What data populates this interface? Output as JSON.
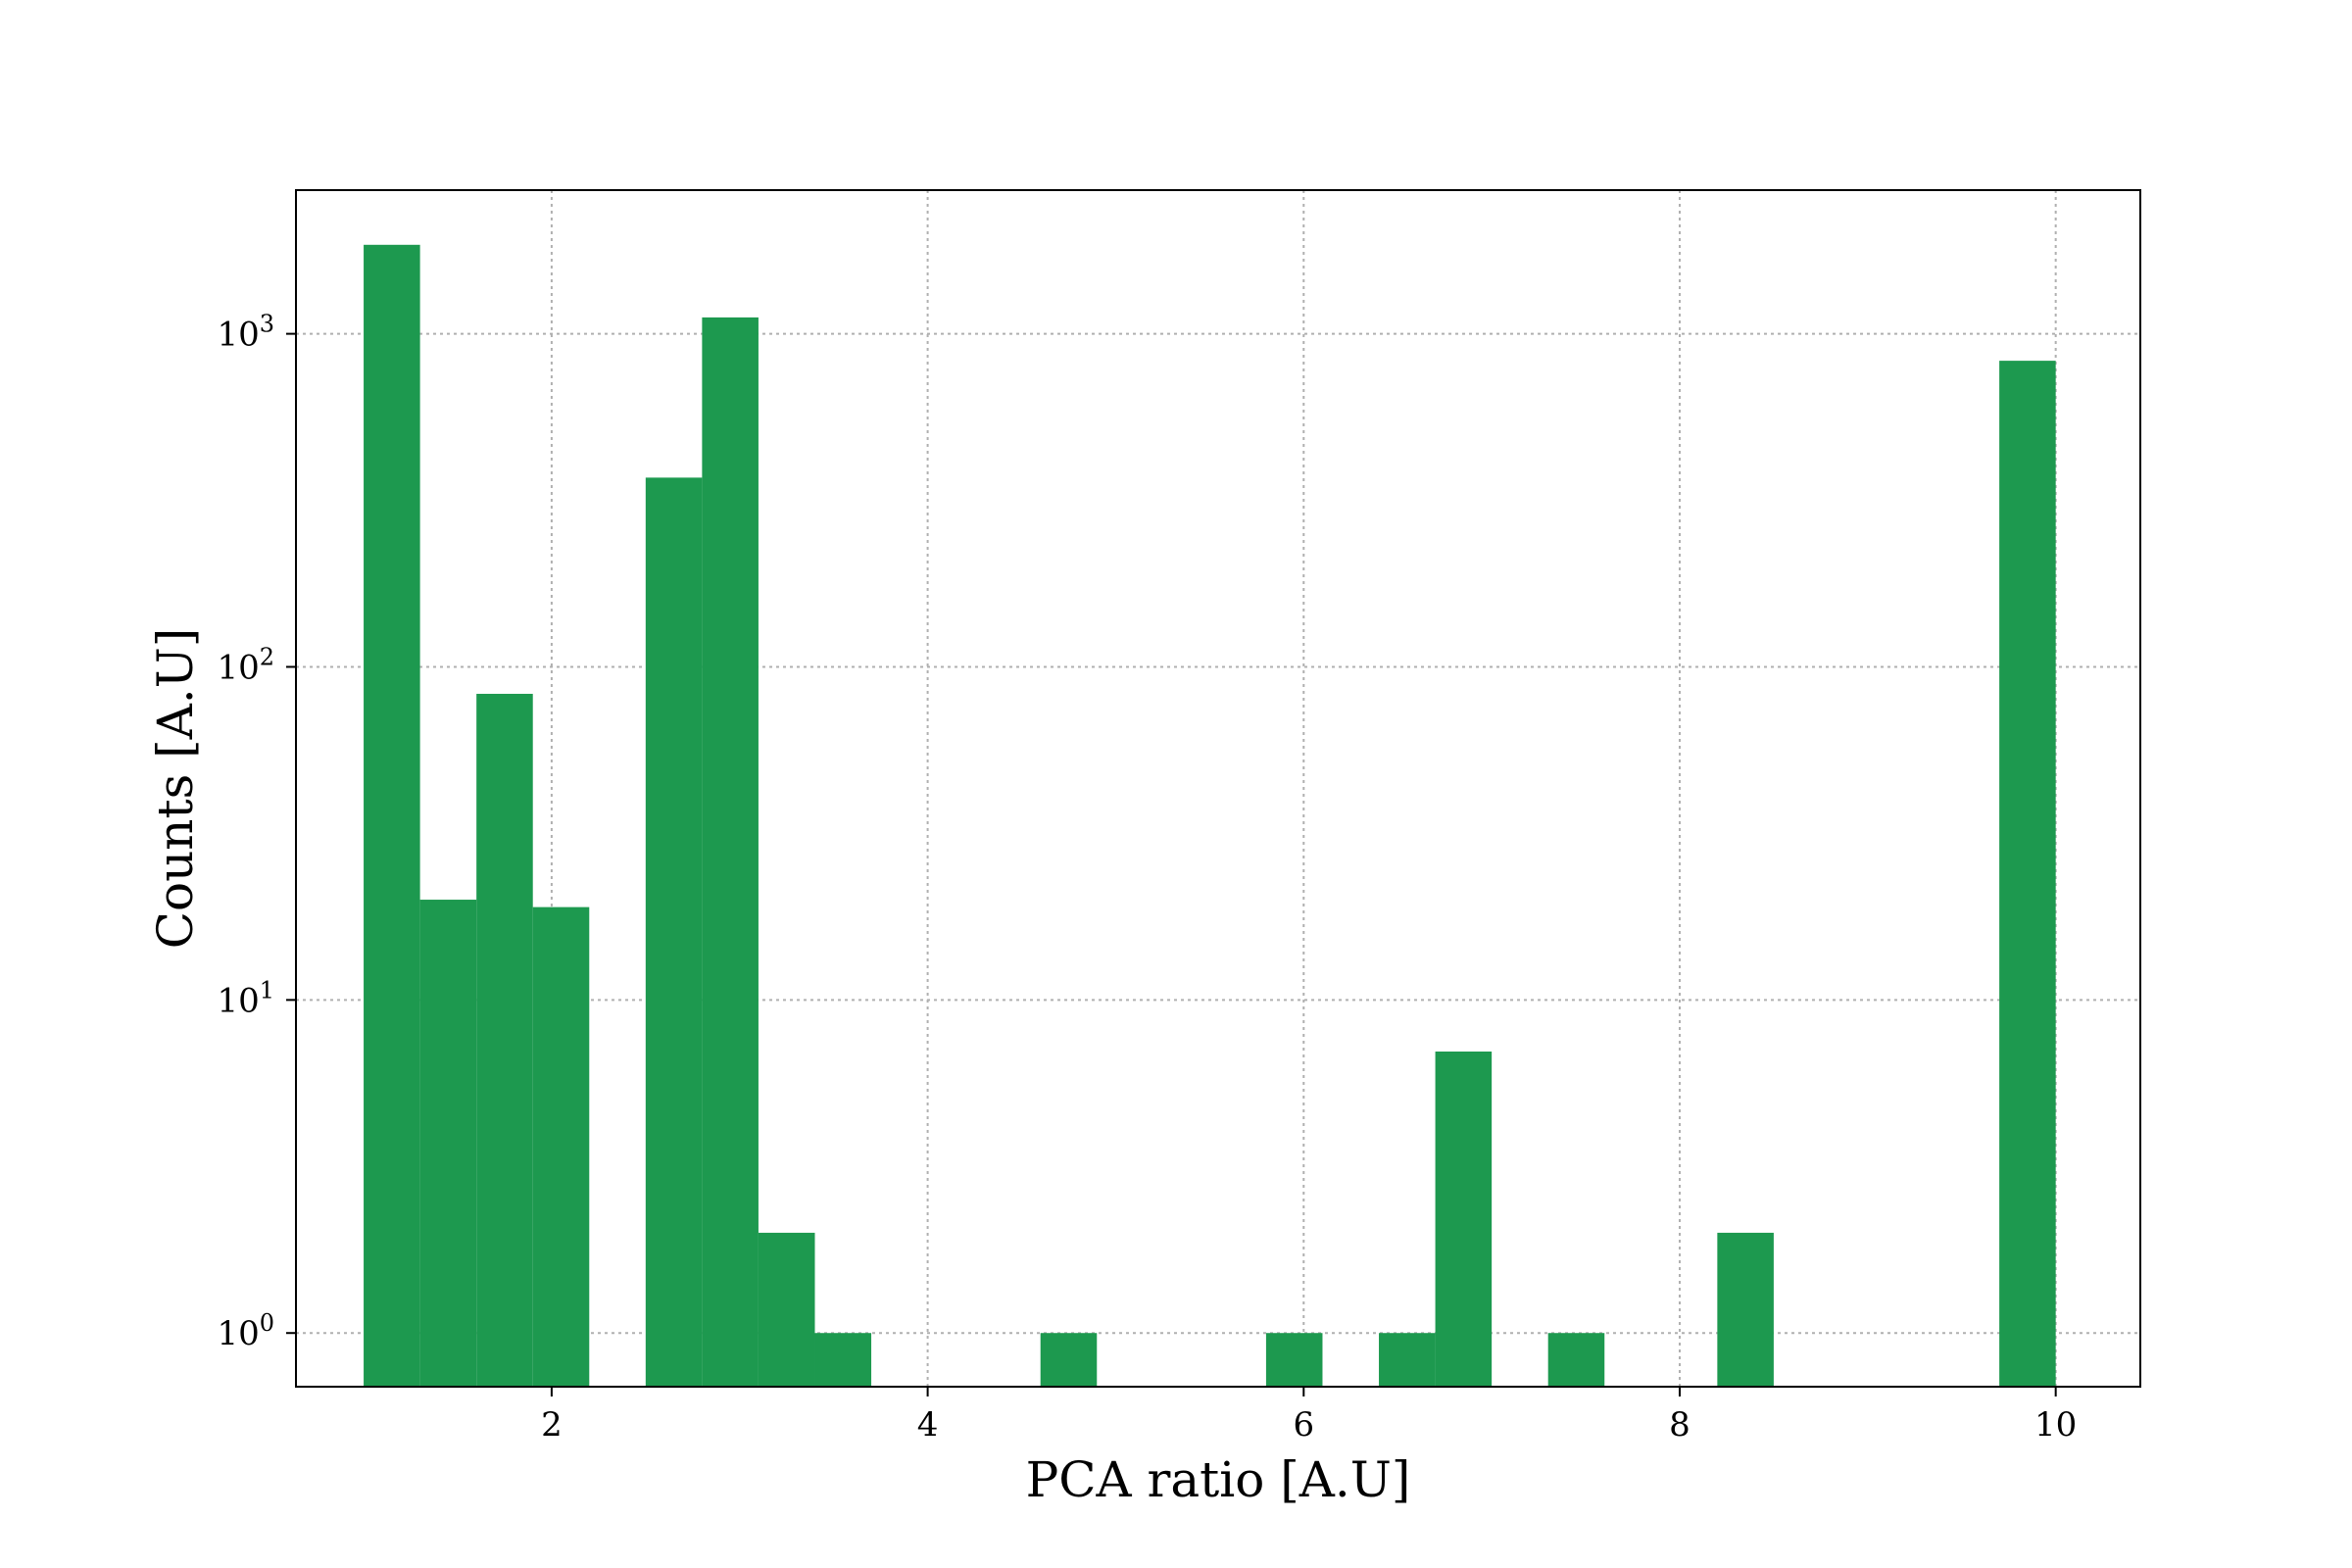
{
  "chart_data": {
    "type": "bar",
    "title": "",
    "xlabel": "PCA ratio [A.U]",
    "ylabel": "Counts [A.U]",
    "y_scale": "log",
    "xlim": [
      0.64,
      10.45
    ],
    "ylim": [
      0.69,
      2700
    ],
    "grid": true,
    "legend": "none",
    "bar_color": "#1d994f",
    "bin_width": 0.3,
    "x_ticks": [
      {
        "value": 2,
        "label": "2"
      },
      {
        "value": 4,
        "label": "4"
      },
      {
        "value": 6,
        "label": "6"
      },
      {
        "value": 8,
        "label": "8"
      },
      {
        "value": 10,
        "label": "10"
      }
    ],
    "y_ticks": [
      {
        "value": 1,
        "base": "10",
        "exp": "0"
      },
      {
        "value": 10,
        "base": "10",
        "exp": "1"
      },
      {
        "value": 100,
        "base": "10",
        "exp": "2"
      },
      {
        "value": 1000,
        "base": "10",
        "exp": "3"
      }
    ],
    "bins": [
      {
        "start": 1.0,
        "end": 1.3,
        "count": 1850
      },
      {
        "start": 1.3,
        "end": 1.6,
        "count": 20
      },
      {
        "start": 1.6,
        "end": 1.9,
        "count": 83
      },
      {
        "start": 1.9,
        "end": 2.2,
        "count": 19
      },
      {
        "start": 2.5,
        "end": 2.8,
        "count": 370
      },
      {
        "start": 2.8,
        "end": 3.1,
        "count": 1120
      },
      {
        "start": 3.1,
        "end": 3.4,
        "count": 2
      },
      {
        "start": 3.4,
        "end": 3.7,
        "count": 1
      },
      {
        "start": 4.6,
        "end": 4.9,
        "count": 1
      },
      {
        "start": 5.8,
        "end": 6.1,
        "count": 1
      },
      {
        "start": 6.4,
        "end": 6.7,
        "count": 1
      },
      {
        "start": 6.7,
        "end": 7.0,
        "count": 7
      },
      {
        "start": 7.3,
        "end": 7.6,
        "count": 1
      },
      {
        "start": 8.2,
        "end": 8.5,
        "count": 2
      },
      {
        "start": 9.7,
        "end": 10.0,
        "count": 830
      }
    ]
  }
}
